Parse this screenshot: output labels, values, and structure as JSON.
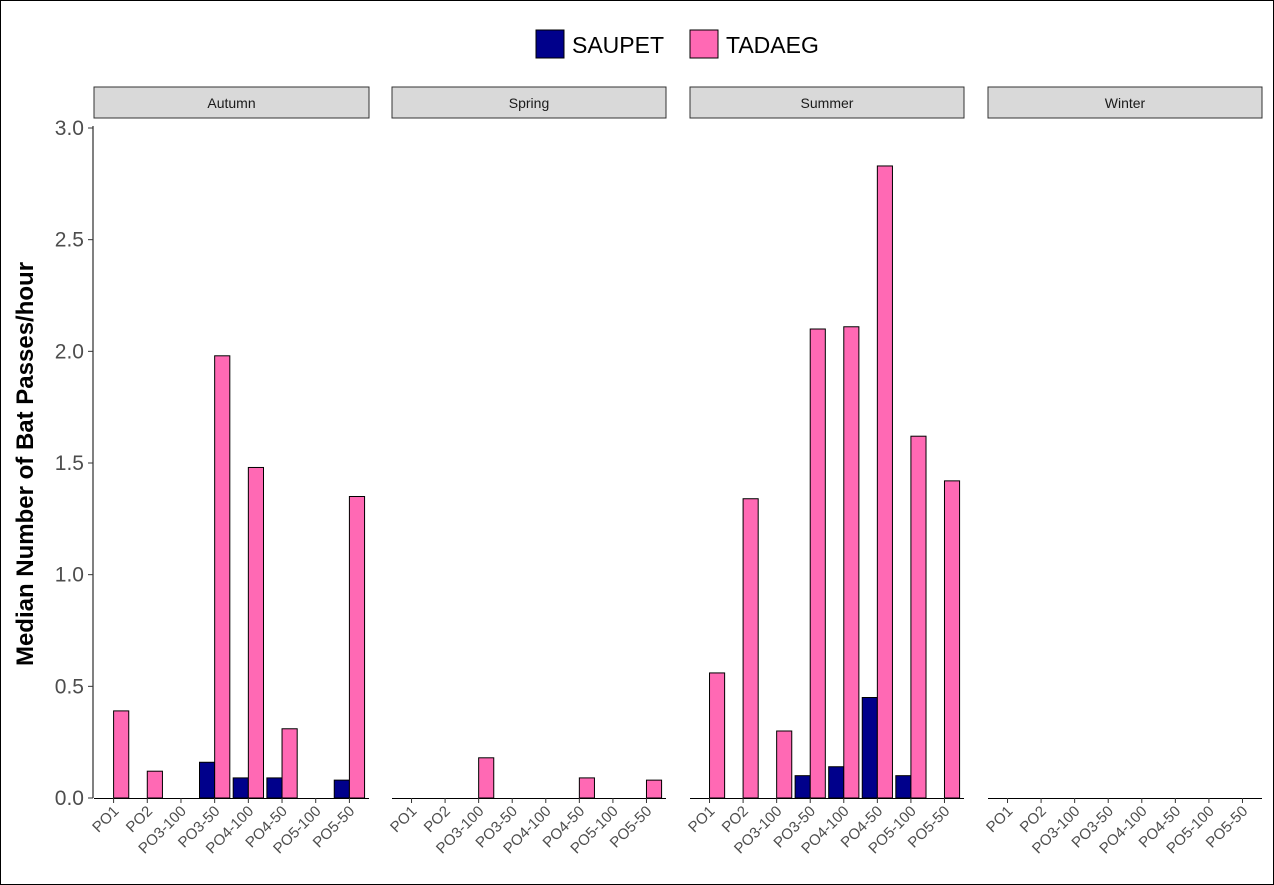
{
  "chart_data": {
    "type": "bar",
    "layout": "faceted",
    "ylabel": "Median Number of Bat Passes/hour",
    "xlabel": "",
    "ylim": [
      0,
      3.0
    ],
    "yticks": [
      "0.0",
      "0.5",
      "1.0",
      "1.5",
      "2.0",
      "2.5",
      "3.0"
    ],
    "grid": false,
    "legend_position": "top",
    "categories": [
      "PO1",
      "PO2",
      "PO3-100",
      "PO3-50",
      "PO4-100",
      "PO4-50",
      "PO5-100",
      "PO5-50"
    ],
    "series_meta": [
      {
        "name": "SAUPET",
        "color": "#00008B"
      },
      {
        "name": "TADAEG",
        "color": "#FF69B4"
      }
    ],
    "facets": [
      {
        "label": "Autumn",
        "series": [
          {
            "name": "SAUPET",
            "values": [
              0,
              0,
              0,
              0.16,
              0.09,
              0.09,
              0,
              0.08
            ]
          },
          {
            "name": "TADAEG",
            "values": [
              0.39,
              0.12,
              0,
              1.98,
              1.48,
              0.31,
              0,
              1.35
            ]
          }
        ]
      },
      {
        "label": "Spring",
        "series": [
          {
            "name": "SAUPET",
            "values": [
              0,
              0,
              0,
              0,
              0,
              0,
              0,
              0
            ]
          },
          {
            "name": "TADAEG",
            "values": [
              0,
              0,
              0.18,
              0,
              0,
              0.09,
              0,
              0.08
            ]
          }
        ]
      },
      {
        "label": "Summer",
        "series": [
          {
            "name": "SAUPET",
            "values": [
              0,
              0,
              0,
              0.1,
              0.14,
              0.45,
              0.1,
              0
            ]
          },
          {
            "name": "TADAEG",
            "values": [
              0.56,
              1.34,
              0.3,
              2.1,
              2.11,
              2.83,
              1.62,
              1.42
            ]
          }
        ]
      },
      {
        "label": "Winter",
        "series": [
          {
            "name": "SAUPET",
            "values": [
              0,
              0,
              0,
              0,
              0,
              0,
              0,
              0
            ]
          },
          {
            "name": "TADAEG",
            "values": [
              0,
              0,
              0,
              0,
              0,
              0,
              0,
              0
            ]
          }
        ]
      }
    ]
  }
}
